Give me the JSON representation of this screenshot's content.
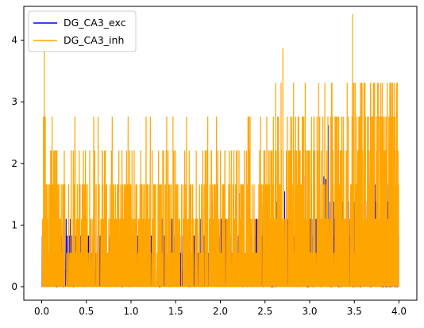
{
  "chart_data": {
    "type": "line",
    "title": "",
    "xlabel": "",
    "ylabel": "",
    "xlim": [
      -0.2,
      4.2
    ],
    "ylim": [
      -0.22,
      4.55
    ],
    "x_ticks": [
      0.0,
      0.5,
      1.0,
      1.5,
      2.0,
      2.5,
      3.0,
      3.5,
      4.0
    ],
    "x_tick_labels": [
      "0.0",
      "0.5",
      "1.0",
      "1.5",
      "2.0",
      "2.5",
      "3.0",
      "3.5",
      "4.0"
    ],
    "y_ticks": [
      0,
      1,
      2,
      3,
      4
    ],
    "y_tick_labels": [
      "0",
      "1",
      "2",
      "3",
      "4"
    ],
    "grid": false,
    "legend_position": "upper left",
    "series": [
      {
        "name": "DG_CA3_exc",
        "color": "#0000ff",
        "x_range": [
          0.0,
          4.0
        ],
        "levels": [
          0,
          0.28,
          0.55,
          0.83,
          1.1,
          1.38,
          1.66,
          1.93,
          2.21,
          2.76
        ],
        "spikes": [
          {
            "x": 1.62,
            "y": 1.38
          },
          {
            "x": 1.91,
            "y": 1.38
          },
          {
            "x": 2.21,
            "y": 1.52
          },
          {
            "x": 2.24,
            "y": 1.38
          },
          {
            "x": 2.72,
            "y": 1.55
          },
          {
            "x": 2.95,
            "y": 1.79
          },
          {
            "x": 3.02,
            "y": 1.66
          },
          {
            "x": 3.16,
            "y": 1.79
          },
          {
            "x": 3.18,
            "y": 1.75
          },
          {
            "x": 3.21,
            "y": 2.62
          },
          {
            "x": 3.46,
            "y": 1.52
          },
          {
            "x": 3.68,
            "y": 1.79
          },
          {
            "x": 3.72,
            "y": 0.5
          },
          {
            "x": 3.85,
            "y": 1.38
          },
          {
            "x": 3.82,
            "y": 0.35
          }
        ]
      },
      {
        "name": "DG_CA3_inh",
        "color": "#ffa500",
        "x_range": [
          0.0,
          4.0
        ],
        "levels": [
          0,
          0.55,
          1.1,
          1.66,
          2.21,
          2.76,
          3.31,
          3.87,
          4.42
        ],
        "spikes": [
          {
            "x": 0.02,
            "y": 2.76
          },
          {
            "x": 0.03,
            "y": 3.87
          },
          {
            "x": 0.04,
            "y": 2.76
          },
          {
            "x": 0.1,
            "y": 2.21
          },
          {
            "x": 0.14,
            "y": 1.66
          },
          {
            "x": 0.22,
            "y": 1.66
          },
          {
            "x": 0.33,
            "y": 1.66
          },
          {
            "x": 0.43,
            "y": 1.66
          },
          {
            "x": 0.61,
            "y": 1.66
          },
          {
            "x": 0.78,
            "y": 2.21
          },
          {
            "x": 0.85,
            "y": 1.66
          },
          {
            "x": 0.96,
            "y": 1.66
          },
          {
            "x": 1.12,
            "y": 1.66
          },
          {
            "x": 1.19,
            "y": 1.66
          },
          {
            "x": 1.34,
            "y": 1.66
          },
          {
            "x": 1.47,
            "y": 2.76
          },
          {
            "x": 1.67,
            "y": 1.66
          },
          {
            "x": 1.73,
            "y": 2.21
          },
          {
            "x": 1.83,
            "y": 2.21
          },
          {
            "x": 1.9,
            "y": 2.21
          },
          {
            "x": 2.05,
            "y": 2.21
          },
          {
            "x": 2.18,
            "y": 2.21
          },
          {
            "x": 2.32,
            "y": 2.76
          },
          {
            "x": 2.45,
            "y": 2.76
          },
          {
            "x": 2.52,
            "y": 2.76
          },
          {
            "x": 2.62,
            "y": 3.31
          },
          {
            "x": 2.68,
            "y": 3.31
          },
          {
            "x": 2.7,
            "y": 3.87
          },
          {
            "x": 2.75,
            "y": 2.76
          },
          {
            "x": 2.82,
            "y": 3.31
          },
          {
            "x": 2.87,
            "y": 2.76
          },
          {
            "x": 2.95,
            "y": 3.31
          },
          {
            "x": 3.05,
            "y": 2.76
          },
          {
            "x": 3.1,
            "y": 3.31
          },
          {
            "x": 3.17,
            "y": 3.31
          },
          {
            "x": 3.25,
            "y": 3.31
          },
          {
            "x": 3.3,
            "y": 2.76
          },
          {
            "x": 3.36,
            "y": 2.76
          },
          {
            "x": 3.42,
            "y": 3.31
          },
          {
            "x": 3.48,
            "y": 4.42
          },
          {
            "x": 3.55,
            "y": 2.76
          },
          {
            "x": 3.62,
            "y": 3.31
          },
          {
            "x": 3.66,
            "y": 2.76
          },
          {
            "x": 3.72,
            "y": 3.31
          },
          {
            "x": 3.76,
            "y": 3.31
          },
          {
            "x": 3.8,
            "y": 2.76
          },
          {
            "x": 3.86,
            "y": 2.76
          },
          {
            "x": 3.9,
            "y": 3.31
          },
          {
            "x": 3.95,
            "y": 3.31
          },
          {
            "x": 3.98,
            "y": 3.31
          },
          {
            "x": 3.72,
            "y": 0.0
          }
        ]
      }
    ]
  }
}
